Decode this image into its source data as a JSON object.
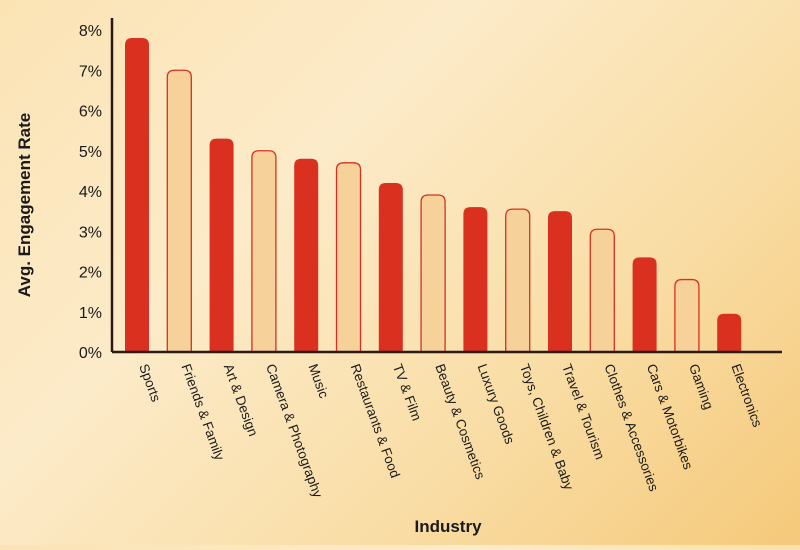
{
  "chart_data": {
    "type": "bar",
    "xlabel": "Industry",
    "ylabel": "Avg. Engagement Rate",
    "ylim": [
      0,
      8
    ],
    "yticks": [
      "0%",
      "1%",
      "2%",
      "3%",
      "4%",
      "5%",
      "6%",
      "7%",
      "8%"
    ],
    "categories": [
      "Sports",
      "Friends & Family",
      "Art & Design",
      "Camera & Photography",
      "Music",
      "Restaurants & Food",
      "TV & Film",
      "Beauty & Cosmetics",
      "Luxury Goods",
      "Toys, Children & Baby",
      "Travel & Tourism",
      "Clothes & Accessories",
      "Cars & Motorbikes",
      "Gaming",
      "Electronics"
    ],
    "values": [
      7.8,
      7.0,
      5.3,
      5.0,
      4.8,
      4.7,
      4.2,
      3.9,
      3.6,
      3.55,
      3.5,
      3.05,
      2.35,
      1.8,
      0.95
    ],
    "grid": false,
    "colors": {
      "dark": "#d9301f",
      "light": "#f7d19a",
      "lightStroke": "#d9301f",
      "axis": "#2b1a12",
      "text": "#1a1a1a"
    },
    "fills": [
      "dark",
      "light",
      "dark",
      "light",
      "dark",
      "light",
      "dark",
      "light",
      "dark",
      "light",
      "dark",
      "light",
      "dark",
      "light",
      "dark"
    ]
  }
}
